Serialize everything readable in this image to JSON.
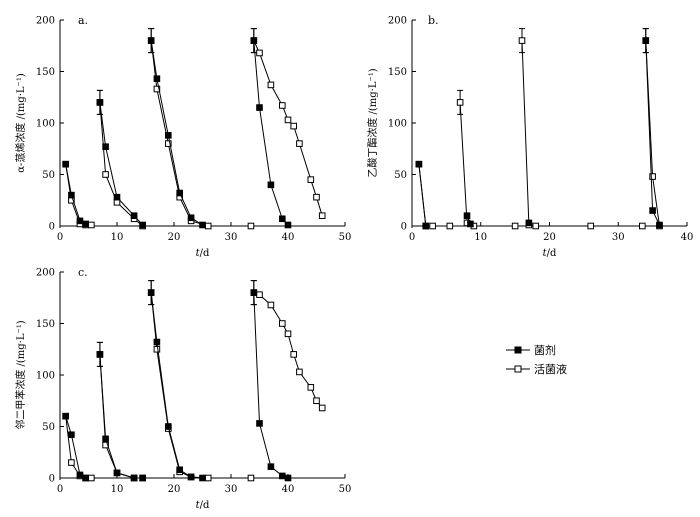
{
  "legend": {
    "items": [
      {
        "label": "菌剂",
        "marker": "filled-square"
      },
      {
        "label": "活菌液",
        "marker": "open-square"
      }
    ]
  },
  "chart_data": [
    {
      "type": "line",
      "panel": "a.",
      "xlabel": "t/d",
      "ylabel": "α-蒎烯浓度 /(mg·L⁻¹)",
      "xlim": [
        0,
        50
      ],
      "ylim": [
        0,
        200
      ],
      "xticks": [
        0,
        10,
        20,
        30,
        40,
        50
      ],
      "yticks": [
        0,
        50,
        100,
        150,
        200
      ],
      "series": [
        {
          "name": "菌剂",
          "marker": "filled",
          "segments": [
            [
              [
                1,
                60
              ],
              [
                2,
                30
              ],
              [
                3.5,
                5
              ],
              [
                4.5,
                2
              ]
            ],
            [
              [
                7,
                120
              ],
              [
                8,
                77
              ],
              [
                10,
                28
              ],
              [
                13,
                10
              ],
              [
                14.5,
                1
              ]
            ],
            [
              [
                16,
                180
              ],
              [
                17,
                143
              ],
              [
                19,
                88
              ],
              [
                21,
                32
              ],
              [
                23,
                8
              ],
              [
                25,
                1
              ]
            ],
            [
              [
                34,
                180
              ],
              [
                35,
                115
              ],
              [
                37,
                40
              ],
              [
                39,
                7
              ],
              [
                40,
                1
              ]
            ]
          ]
        },
        {
          "name": "活菌液",
          "marker": "open",
          "segments": [
            [
              [
                1,
                60
              ],
              [
                2,
                25
              ],
              [
                3.5,
                2
              ],
              [
                4.5,
                1
              ],
              [
                5.5,
                1
              ]
            ],
            [
              [
                7,
                120
              ],
              [
                8,
                50
              ],
              [
                10,
                23
              ],
              [
                13,
                7
              ],
              [
                14.5,
                0
              ]
            ],
            [
              [
                16,
                180
              ],
              [
                17,
                133
              ],
              [
                19,
                80
              ],
              [
                21,
                28
              ],
              [
                23,
                5
              ],
              [
                26,
                0
              ],
              [
                33.5,
                0
              ]
            ],
            [
              [
                34,
                180
              ],
              [
                35,
                168
              ],
              [
                37,
                137
              ],
              [
                39,
                117
              ],
              [
                40,
                103
              ],
              [
                41,
                97
              ],
              [
                42,
                80
              ],
              [
                44,
                45
              ],
              [
                45,
                28
              ],
              [
                46,
                10
              ]
            ]
          ]
        }
      ]
    },
    {
      "type": "line",
      "panel": "b.",
      "xlabel": "t/d",
      "ylabel": "乙酸丁酯浓度 /(mg·L⁻¹)",
      "xlim": [
        0,
        40
      ],
      "ylim": [
        0,
        200
      ],
      "xticks": [
        0,
        10,
        20,
        30,
        40
      ],
      "yticks": [
        0,
        50,
        100,
        150,
        200
      ],
      "series": [
        {
          "name": "菌剂",
          "marker": "filled",
          "segments": [
            [
              [
                1,
                60
              ],
              [
                2,
                0
              ]
            ],
            [
              [
                8,
                10
              ],
              [
                8.5,
                2
              ]
            ],
            [
              [
                17,
                3
              ]
            ],
            [
              [
                34,
                180
              ],
              [
                35,
                15
              ],
              [
                36,
                1
              ]
            ]
          ]
        },
        {
          "name": "活菌液",
          "marker": "open",
          "segments": [
            [
              [
                1,
                60
              ],
              [
                2,
                0
              ],
              [
                3,
                0
              ],
              [
                5.5,
                0
              ]
            ],
            [
              [
                7,
                120
              ],
              [
                8,
                3
              ],
              [
                9,
                0
              ],
              [
                15,
                0
              ]
            ],
            [
              [
                16,
                180
              ],
              [
                17,
                1
              ],
              [
                18,
                0
              ],
              [
                26,
                0
              ],
              [
                33.5,
                0
              ]
            ],
            [
              [
                34,
                180
              ],
              [
                35,
                48
              ],
              [
                36,
                0
              ]
            ]
          ]
        }
      ]
    },
    {
      "type": "line",
      "panel": "c.",
      "xlabel": "t/d",
      "ylabel": "邻二甲苯浓度 /(mg·L⁻¹)",
      "xlim": [
        0,
        50
      ],
      "ylim": [
        0,
        200
      ],
      "xticks": [
        0,
        10,
        20,
        30,
        40,
        50
      ],
      "yticks": [
        0,
        50,
        100,
        150,
        200
      ],
      "series": [
        {
          "name": "菌剂",
          "marker": "filled",
          "segments": [
            [
              [
                1,
                60
              ],
              [
                2,
                42
              ],
              [
                3.5,
                3
              ],
              [
                4.5,
                0
              ]
            ],
            [
              [
                7,
                120
              ],
              [
                8,
                38
              ],
              [
                10,
                5
              ],
              [
                13,
                0
              ],
              [
                14.5,
                0
              ]
            ],
            [
              [
                16,
                180
              ],
              [
                17,
                132
              ],
              [
                19,
                50
              ],
              [
                21,
                8
              ],
              [
                23,
                1
              ],
              [
                25,
                0
              ]
            ],
            [
              [
                34,
                180
              ],
              [
                35,
                53
              ],
              [
                37,
                11
              ],
              [
                39,
                2
              ],
              [
                40,
                0
              ]
            ]
          ]
        },
        {
          "name": "活菌液",
          "marker": "open",
          "segments": [
            [
              [
                1,
                60
              ],
              [
                2,
                15
              ],
              [
                3.5,
                2
              ],
              [
                4.5,
                0
              ],
              [
                5.5,
                0
              ]
            ],
            [
              [
                7,
                120
              ],
              [
                8,
                32
              ],
              [
                10,
                5
              ],
              [
                13,
                0
              ],
              [
                14.5,
                0
              ]
            ],
            [
              [
                16,
                180
              ],
              [
                17,
                125
              ],
              [
                19,
                48
              ],
              [
                21,
                6
              ],
              [
                23,
                1
              ],
              [
                26,
                0
              ],
              [
                33.5,
                0
              ]
            ],
            [
              [
                34,
                180
              ],
              [
                35,
                178
              ],
              [
                37,
                168
              ],
              [
                39,
                150
              ],
              [
                40,
                140
              ],
              [
                41,
                120
              ],
              [
                42,
                103
              ],
              [
                44,
                88
              ],
              [
                45,
                75
              ],
              [
                46,
                68
              ]
            ]
          ]
        }
      ]
    }
  ]
}
